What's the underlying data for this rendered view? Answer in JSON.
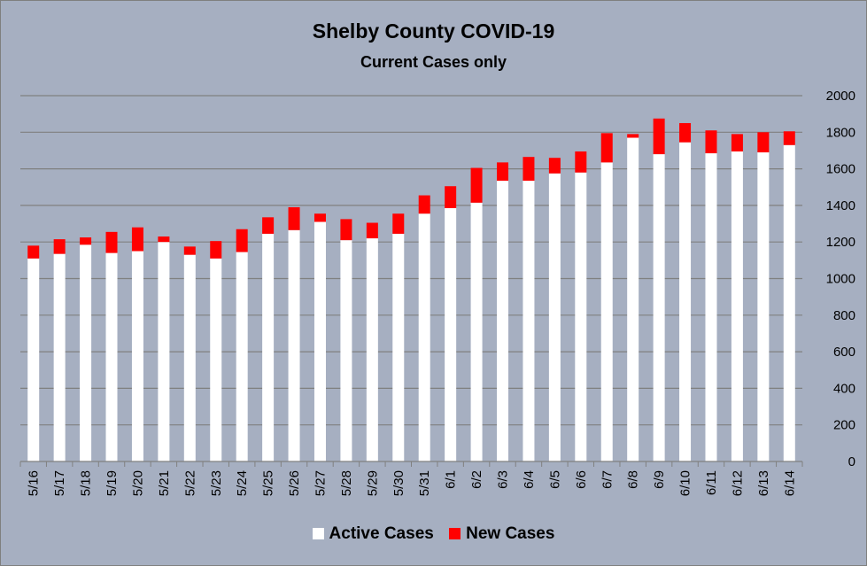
{
  "chart_data": {
    "type": "bar",
    "stacked": true,
    "title": "Shelby County COVID-19",
    "subtitle": "Current Cases only",
    "categories": [
      "5/16",
      "5/17",
      "5/18",
      "5/19",
      "5/20",
      "5/21",
      "5/22",
      "5/23",
      "5/24",
      "5/25",
      "5/26",
      "5/27",
      "5/28",
      "5/29",
      "5/30",
      "5/31",
      "6/1",
      "6/2",
      "6/3",
      "6/4",
      "6/5",
      "6/6",
      "6/7",
      "6/8",
      "6/9",
      "6/10",
      "6/11",
      "6/12",
      "6/13",
      "6/14"
    ],
    "series": [
      {
        "name": "Active Cases",
        "color": "#ffffff",
        "values": [
          1110,
          1135,
          1185,
          1140,
          1150,
          1200,
          1130,
          1110,
          1145,
          1245,
          1265,
          1310,
          1210,
          1220,
          1245,
          1355,
          1385,
          1415,
          1535,
          1535,
          1575,
          1580,
          1635,
          1770,
          1680,
          1745,
          1685,
          1695,
          1690,
          1730
        ]
      },
      {
        "name": "New Cases",
        "color": "#ff0000",
        "values": [
          70,
          80,
          40,
          115,
          130,
          30,
          45,
          95,
          125,
          90,
          125,
          45,
          115,
          85,
          110,
          100,
          120,
          190,
          100,
          130,
          85,
          115,
          160,
          20,
          195,
          105,
          125,
          95,
          110,
          75
        ]
      }
    ],
    "ylim": [
      0,
      2000
    ],
    "yticks": [
      0,
      200,
      400,
      600,
      800,
      1000,
      1200,
      1400,
      1600,
      1800,
      2000
    ],
    "y_axis_position": "right",
    "grid": true,
    "legend": "bottom",
    "colors": {
      "background": "#a6afc1",
      "gridline": "#808080"
    }
  }
}
